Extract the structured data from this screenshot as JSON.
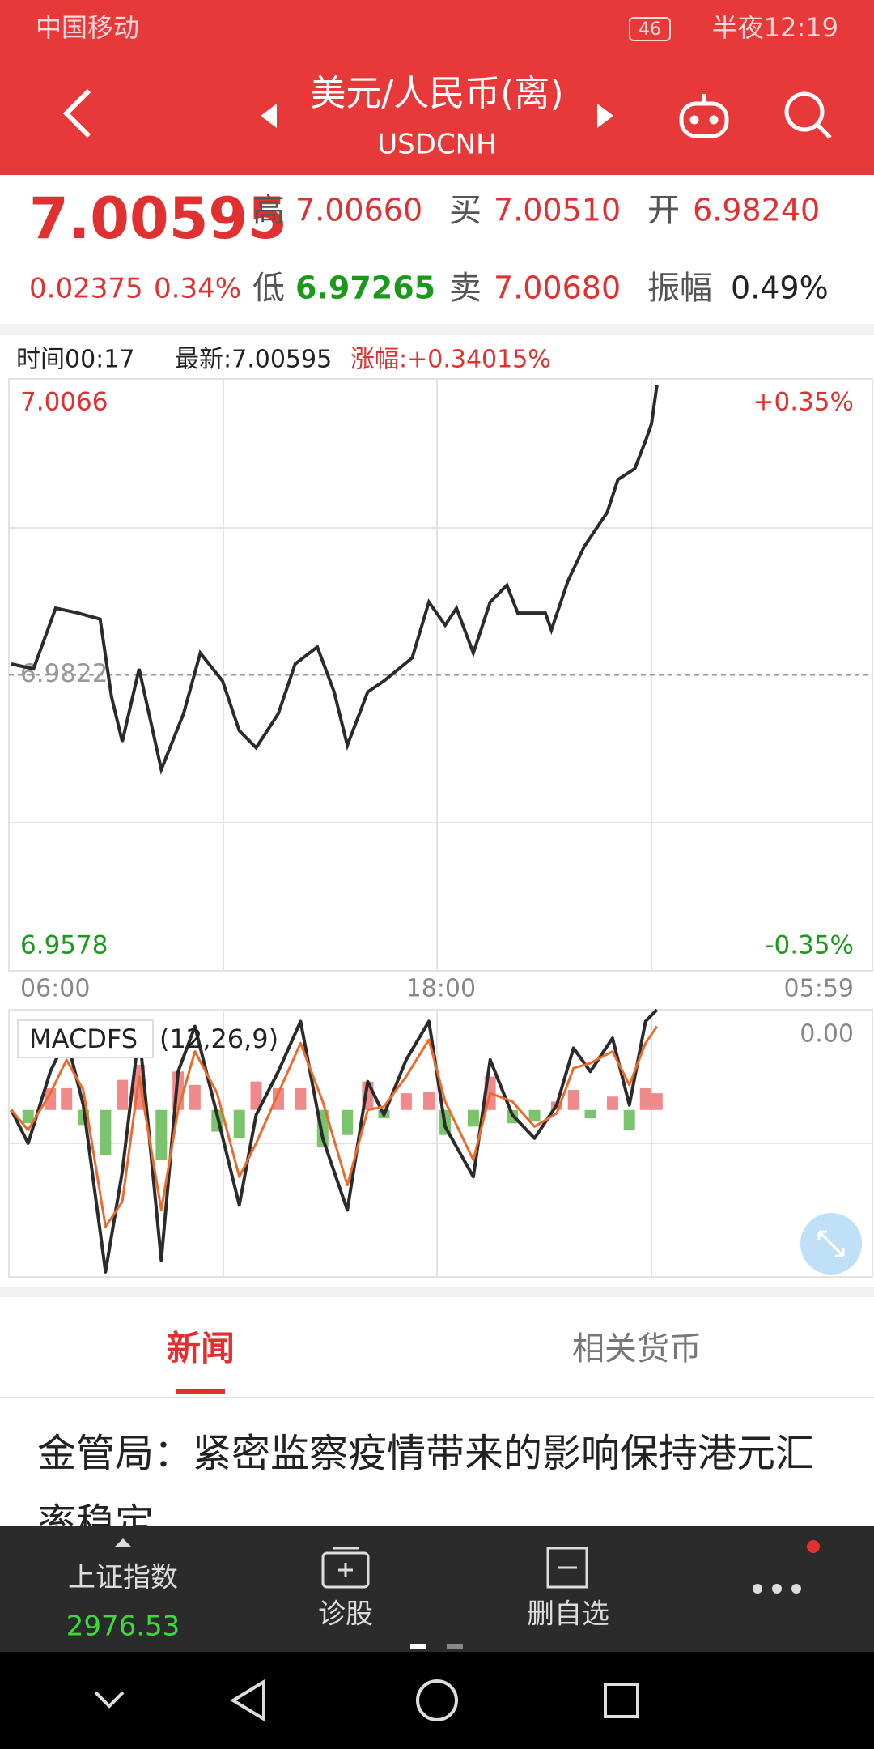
{
  "status_bar": {
    "carrier": "中国移动",
    "battery": "46",
    "time": "半夜12:19"
  },
  "header": {
    "title": "美元/人民币(离)",
    "subtitle": "USDCNH"
  },
  "quote": {
    "price": "7.00595",
    "change": "0.02375",
    "change_pct": "0.34%",
    "high_label": "高",
    "high": "7.00660",
    "low_label": "低",
    "low": "6.97265",
    "buy_label": "买",
    "buy": "7.00510",
    "sell_label": "卖",
    "sell": "7.00680",
    "open_label": "开",
    "open": "6.98240",
    "amp_label": "振幅",
    "amp": "0.49%"
  },
  "chart_info": {
    "time": "时间00:17",
    "latest": "最新:7.00595",
    "change": "涨幅:+0.34015%"
  },
  "chart_data": [
    {
      "type": "line",
      "color": "#2b2b2b",
      "x": [
        4,
        41,
        78,
        115,
        152,
        171,
        189,
        217,
        254,
        291,
        319,
        356,
        384,
        412,
        449,
        477,
        514,
        542,
        564,
        598,
        625,
        672,
        700,
        727,
        746,
        774,
        802,
        830,
        848,
        894,
        904,
        932,
        959,
        997,
        1015,
        1043,
        1061,
        1071,
        1080
      ],
      "values": [
        6.9831,
        6.9827,
        6.9877,
        6.9873,
        6.9868,
        6.9804,
        6.9767,
        6.9827,
        6.9744,
        6.979,
        6.984,
        6.9817,
        6.9776,
        6.9762,
        6.979,
        6.9831,
        6.9845,
        6.9808,
        6.9764,
        6.9808,
        6.9817,
        6.9836,
        6.9882,
        6.9863,
        6.9877,
        6.984,
        6.9882,
        6.9896,
        6.9873,
        6.9873,
        6.9859,
        6.99,
        6.9928,
        6.9956,
        6.9983,
        6.9992,
        7.0015,
        7.0029,
        7.0061
      ],
      "xlim": [
        0,
        1439
      ],
      "xticks": [
        {
          "value": 0,
          "label": "06:00"
        },
        {
          "value": 720,
          "label": "18:00"
        },
        {
          "value": 1439,
          "label": "05:59"
        }
      ],
      "ylim": [
        6.9578,
        7.0066
      ],
      "yticks": [
        7.0066,
        6.9822,
        6.9578
      ],
      "y2lim": [
        -0.35,
        0.35
      ],
      "y2ticks": [
        {
          "value": 0.35,
          "label": "+0.35%"
        },
        {
          "value": -0.35,
          "label": "-0.35%"
        }
      ]
    },
    {
      "type": "macd",
      "title": "MACDFS",
      "params": "(12,26,9)",
      "top_label": "0.00",
      "xlim": [
        0,
        1439
      ],
      "ylim": [
        -1,
        0.6
      ],
      "x": [
        4,
        32,
        69,
        96,
        124,
        161,
        189,
        217,
        254,
        282,
        310,
        347,
        384,
        412,
        449,
        486,
        523,
        564,
        598,
        625,
        662,
        700,
        727,
        774,
        802,
        839,
        876,
        913,
        941,
        969,
        1006,
        1034,
        1061,
        1080
      ],
      "dif": {
        "color": "#2b2b2b",
        "values": [
          0,
          -0.2,
          0.23,
          0.43,
          0.03,
          -0.97,
          -0.37,
          0.47,
          -0.9,
          0.23,
          0.5,
          -0.03,
          -0.57,
          -0.03,
          0.23,
          0.53,
          -0.17,
          -0.6,
          0.17,
          -0.03,
          0.3,
          0.53,
          -0.1,
          -0.4,
          0.3,
          -0.03,
          -0.17,
          0.03,
          0.37,
          0.23,
          0.43,
          0.03,
          0.53,
          0.6
        ]
      },
      "dea": {
        "color": "#ec6a2c",
        "values": [
          0,
          -0.12,
          0.1,
          0.3,
          0.12,
          -0.7,
          -0.55,
          0.2,
          -0.6,
          0,
          0.35,
          0.1,
          -0.4,
          -0.2,
          0.1,
          0.4,
          0.05,
          -0.45,
          0,
          0.02,
          0.2,
          0.42,
          0.05,
          -0.3,
          0.1,
          0.05,
          -0.1,
          -0.02,
          0.25,
          0.28,
          0.35,
          0.15,
          0.4,
          0.5
        ]
      },
      "hist": [
        0,
        -0.08,
        0.13,
        0.13,
        -0.09,
        -0.27,
        0.18,
        0.27,
        -0.3,
        0.23,
        0.15,
        -0.13,
        -0.17,
        0.17,
        0.13,
        0.13,
        -0.22,
        -0.15,
        0.17,
        -0.05,
        0.1,
        0.11,
        -0.15,
        -0.1,
        0.2,
        -0.08,
        -0.07,
        0.05,
        0.12,
        -0.05,
        0.08,
        -0.12,
        0.13,
        0.1
      ],
      "hist_colors": {
        "up": "#f08a8a",
        "down": "#7cc36e"
      }
    }
  ],
  "tabs": [
    "新闻",
    "相关货币"
  ],
  "news": {
    "headline": "金管局：紧密监察疫情带来的影响保持港元汇率稳定"
  },
  "bottom_bar": {
    "index_name": "上证指数",
    "index_value": "2976.53",
    "diagnose": "诊股",
    "remove": "删自选"
  }
}
